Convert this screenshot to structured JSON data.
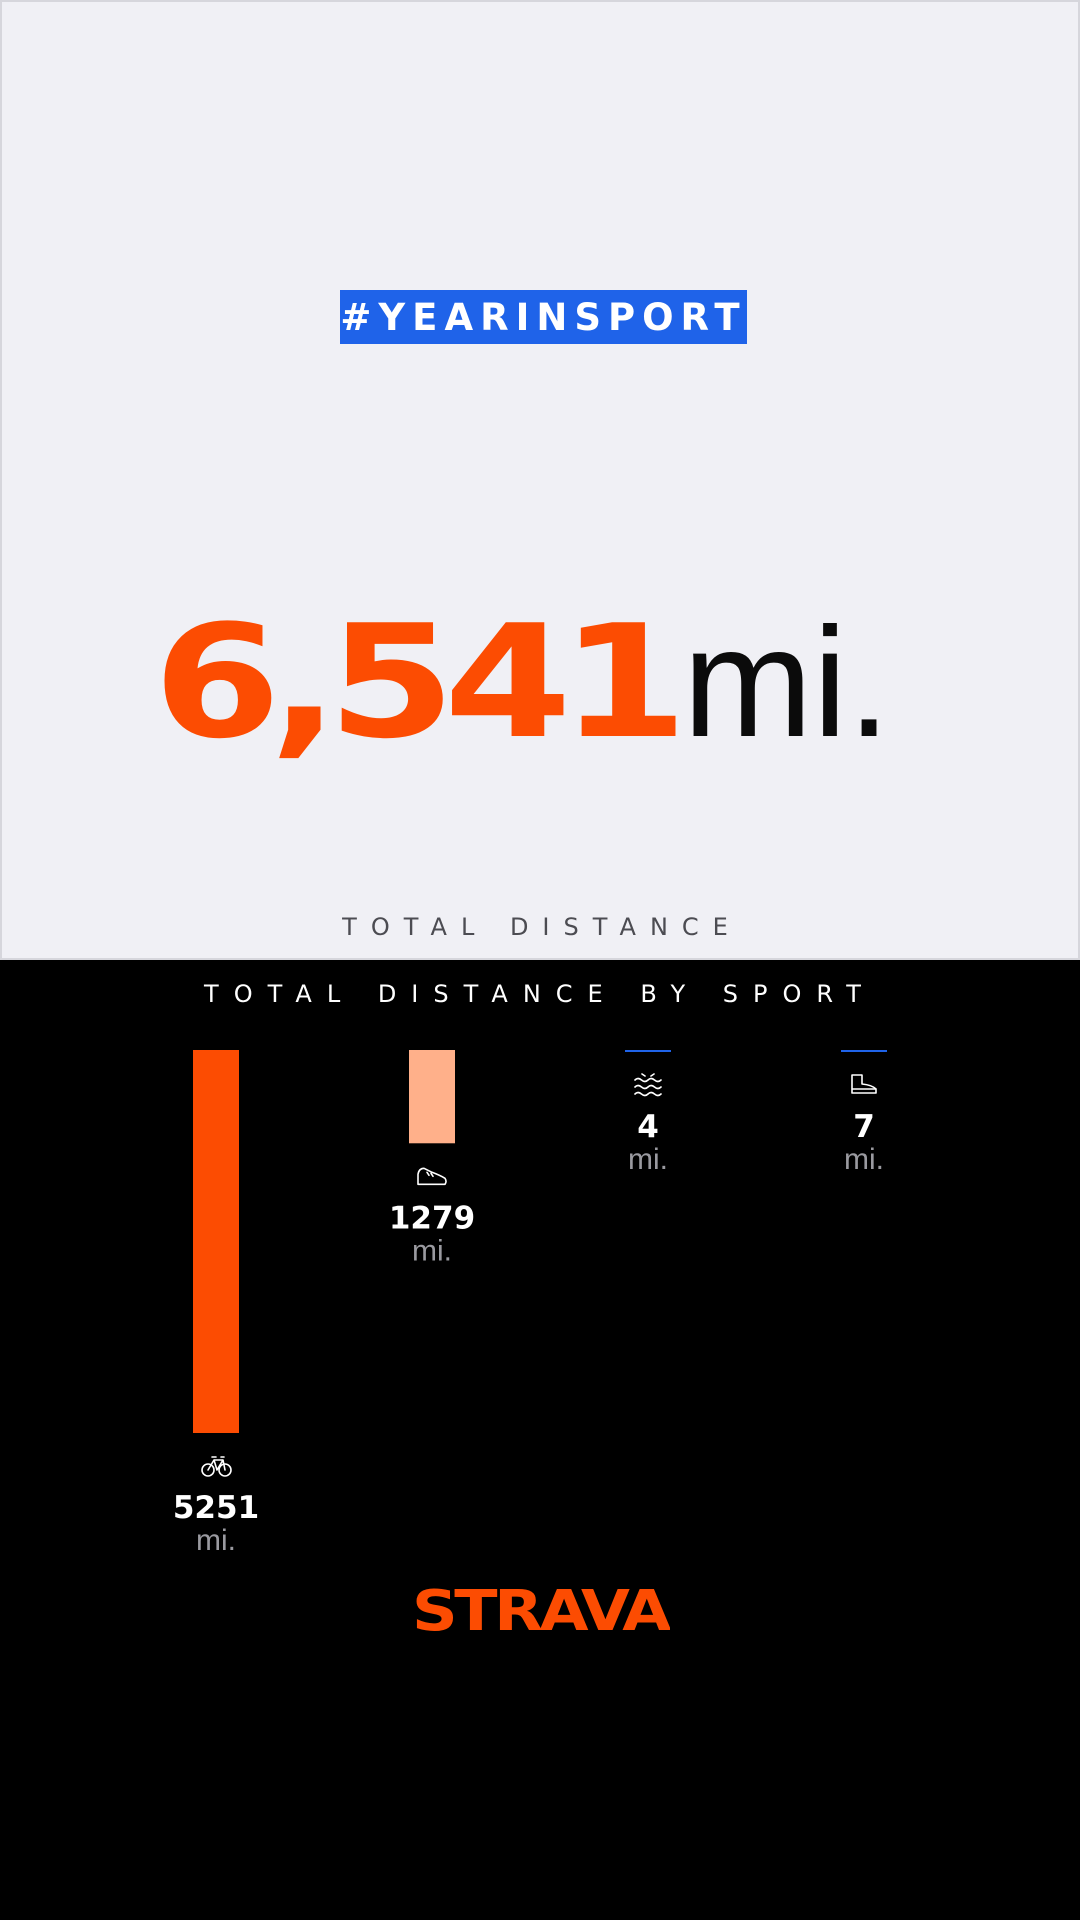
{
  "header": {
    "hashtag": "#YEARINSPORT"
  },
  "hero": {
    "value": "6,541",
    "unit": "mi.",
    "label": "TOTAL DISTANCE"
  },
  "chart_data": {
    "type": "bar",
    "title": "TOTAL DISTANCE BY SPORT",
    "categories": [
      "ride",
      "run",
      "swim",
      "hike"
    ],
    "values": [
      5251,
      1279,
      4,
      7
    ],
    "value_labels": [
      "5251",
      "1279",
      "4",
      "7"
    ],
    "unit": "mi.",
    "icons": [
      "bike-icon",
      "shoe-icon",
      "waves-icon",
      "boot-icon"
    ],
    "colors": [
      "#fc4c02",
      "#ffb08a",
      "#1f63e9",
      "#1f63e9"
    ],
    "xlabel": "",
    "ylabel": "",
    "ylim": [
      0,
      5251
    ],
    "grid": false,
    "legend": "none"
  },
  "brand": {
    "logo": "STRAVA",
    "color": "#fc4c02"
  }
}
